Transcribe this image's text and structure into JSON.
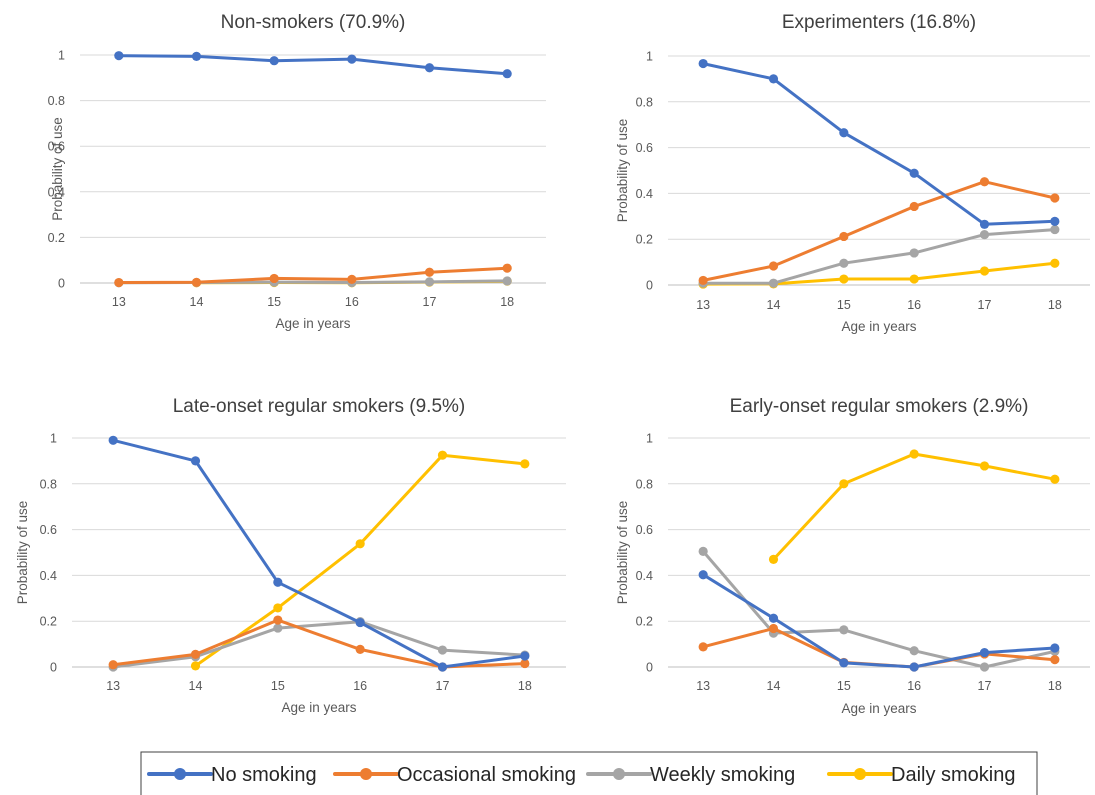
{
  "legend": {
    "entries": [
      {
        "name": "No smoking",
        "color": "#4472C4"
      },
      {
        "name": "Occasional smoking",
        "color": "#ED7D31"
      },
      {
        "name": "Weekly smoking",
        "color": "#A5A5A5"
      },
      {
        "name": "Daily smoking",
        "color": "#FFC000"
      }
    ]
  },
  "chart_data": [
    {
      "type": "line",
      "title": "Non-smokers (70.9%)",
      "xlabel": "Age in years",
      "ylabel": "Probability of use",
      "x": [
        13,
        14,
        15,
        16,
        17,
        18
      ],
      "ylim": [
        0,
        1
      ],
      "yticks": [
        "0",
        "0.2",
        "0.4",
        "0.6",
        "0.8",
        "1"
      ],
      "grid": true,
      "series": [
        {
          "name": "No smoking",
          "color": "#4472C4",
          "values": [
            0.997,
            0.994,
            0.975,
            0.982,
            0.944,
            0.918
          ]
        },
        {
          "name": "Occasional smoking",
          "color": "#ED7D31",
          "values": [
            0.002,
            0.003,
            0.02,
            0.016,
            0.047,
            0.065
          ]
        },
        {
          "name": "Weekly smoking",
          "color": "#A5A5A5",
          "values": [
            0.001,
            0.002,
            0.004,
            0.002,
            0.005,
            0.009
          ]
        },
        {
          "name": "Daily smoking",
          "color": "#FFC000",
          "values": [
            null,
            0.001,
            0.002,
            0.001,
            0.004,
            0.008
          ]
        }
      ]
    },
    {
      "type": "line",
      "title": "Experimenters (16.8%)",
      "xlabel": "Age in years",
      "ylabel": "Probability of use",
      "x": [
        13,
        14,
        15,
        16,
        17,
        18
      ],
      "ylim": [
        0,
        1
      ],
      "yticks": [
        "0",
        "0.2",
        "0.4",
        "0.6",
        "0.8",
        "1"
      ],
      "grid": true,
      "series": [
        {
          "name": "No smoking",
          "color": "#4472C4",
          "values": [
            0.967,
            0.9,
            0.665,
            0.488,
            0.265,
            0.278
          ]
        },
        {
          "name": "Occasional smoking",
          "color": "#ED7D31",
          "values": [
            0.02,
            0.083,
            0.212,
            0.343,
            0.451,
            0.38
          ]
        },
        {
          "name": "Weekly smoking",
          "color": "#A5A5A5",
          "values": [
            0.008,
            0.008,
            0.095,
            0.14,
            0.22,
            0.242
          ]
        },
        {
          "name": "Daily smoking",
          "color": "#FFC000",
          "values": [
            0.004,
            0.005,
            0.026,
            0.026,
            0.061,
            0.095
          ]
        }
      ]
    },
    {
      "type": "line",
      "title": "Late-onset regular smokers (9.5%)",
      "xlabel": "Age in years",
      "ylabel": "Probability of use",
      "x": [
        13,
        14,
        15,
        16,
        17,
        18
      ],
      "ylim": [
        0,
        1
      ],
      "yticks": [
        "0",
        "0.2",
        "0.4",
        "0.6",
        "0.8",
        "1"
      ],
      "grid": true,
      "series": [
        {
          "name": "No smoking",
          "color": "#4472C4",
          "values": [
            0.99,
            0.9,
            0.37,
            0.194,
            0.0,
            0.048
          ]
        },
        {
          "name": "Occasional smoking",
          "color": "#ED7D31",
          "values": [
            0.01,
            0.055,
            0.205,
            0.077,
            0.0,
            0.015
          ]
        },
        {
          "name": "Weekly smoking",
          "color": "#A5A5A5",
          "values": [
            0.0,
            0.045,
            0.17,
            0.198,
            0.074,
            0.052
          ]
        },
        {
          "name": "Daily smoking",
          "color": "#FFC000",
          "values": [
            null,
            0.005,
            0.258,
            0.538,
            0.925,
            0.887
          ]
        }
      ]
    },
    {
      "type": "line",
      "title": "Early-onset regular smokers (2.9%)",
      "xlabel": "Age in years",
      "ylabel": "Probability of use",
      "x": [
        13,
        14,
        15,
        16,
        17,
        18
      ],
      "ylim": [
        0,
        1
      ],
      "yticks": [
        "0",
        "0.2",
        "0.4",
        "0.6",
        "0.8",
        "1"
      ],
      "grid": true,
      "series": [
        {
          "name": "No smoking",
          "color": "#4472C4",
          "values": [
            0.403,
            0.213,
            0.018,
            0.0,
            0.063,
            0.083
          ]
        },
        {
          "name": "Occasional smoking",
          "color": "#ED7D31",
          "values": [
            0.088,
            0.168,
            0.02,
            0.0,
            0.057,
            0.032
          ]
        },
        {
          "name": "Weekly smoking",
          "color": "#A5A5A5",
          "values": [
            0.505,
            0.148,
            0.162,
            0.071,
            0.0,
            0.068
          ]
        },
        {
          "name": "Daily smoking",
          "color": "#FFC000",
          "values": [
            null,
            0.47,
            0.8,
            0.93,
            0.878,
            0.82
          ]
        }
      ]
    }
  ]
}
